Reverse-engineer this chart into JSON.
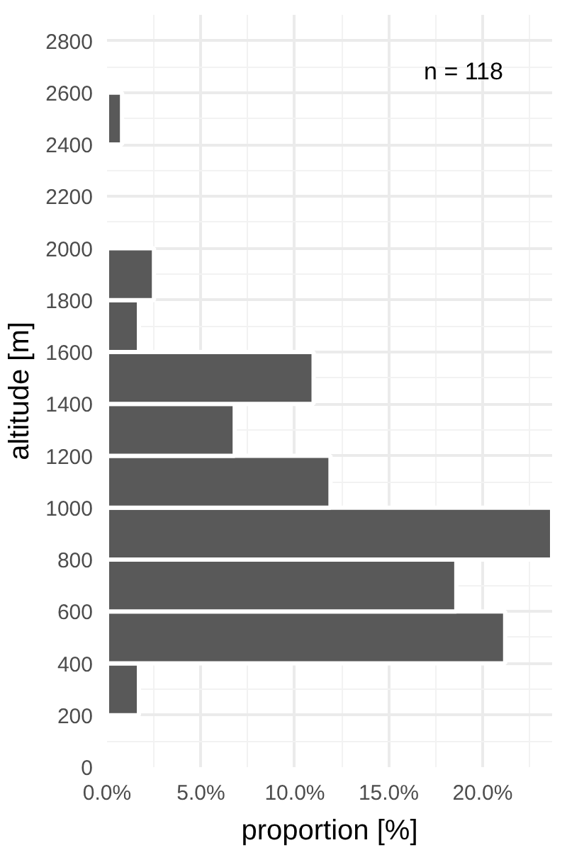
{
  "chart_data": {
    "type": "histogram",
    "orientation": "horizontal",
    "bins": [
      200,
      400,
      600,
      800,
      1000,
      1200,
      1400,
      1600,
      1800,
      2000,
      2200,
      2400,
      2600
    ],
    "values": [
      1.7,
      21.2,
      18.6,
      23.7,
      11.9,
      6.8,
      11.0,
      1.7,
      2.5,
      0,
      0,
      0.8
    ],
    "color": "#595959",
    "xlabel": "proportion [%]",
    "ylabel": "altitude [m]",
    "annotations": [
      "n = 118"
    ],
    "xlim": [
      0,
      23.7
    ],
    "xticks": [
      {
        "value": 0,
        "label": "0.0%"
      },
      {
        "value": 2.5,
        "label": null
      },
      {
        "value": 5,
        "label": "5.0%"
      },
      {
        "value": 7.5,
        "label": null
      },
      {
        "value": 10,
        "label": "10.0%"
      },
      {
        "value": 12.5,
        "label": null
      },
      {
        "value": 15,
        "label": "15.0%"
      },
      {
        "value": 17.5,
        "label": null
      },
      {
        "value": 20,
        "label": "20.0%"
      },
      {
        "value": 22.5,
        "label": null
      }
    ],
    "ylim": [
      0,
      2900
    ],
    "yticks": [
      0,
      {
        "value": 100,
        "label": null
      },
      200,
      {
        "value": 300,
        "label": null
      },
      400,
      {
        "value": 500,
        "label": null
      },
      600,
      {
        "value": 700,
        "label": null
      },
      800,
      {
        "value": 900,
        "label": null
      },
      1000,
      {
        "value": 1100,
        "label": null
      },
      1200,
      {
        "value": 1300,
        "label": null
      },
      1400,
      {
        "value": 1500,
        "label": null
      },
      1600,
      {
        "value": 1700,
        "label": null
      },
      1800,
      {
        "value": 1900,
        "label": null
      },
      2000,
      {
        "value": 2100,
        "label": null
      },
      2200,
      {
        "value": 2300,
        "label": null
      },
      2400,
      {
        "value": 2500,
        "label": null
      },
      2600,
      {
        "value": 2700,
        "label": null
      },
      2800
    ],
    "grid": true
  }
}
